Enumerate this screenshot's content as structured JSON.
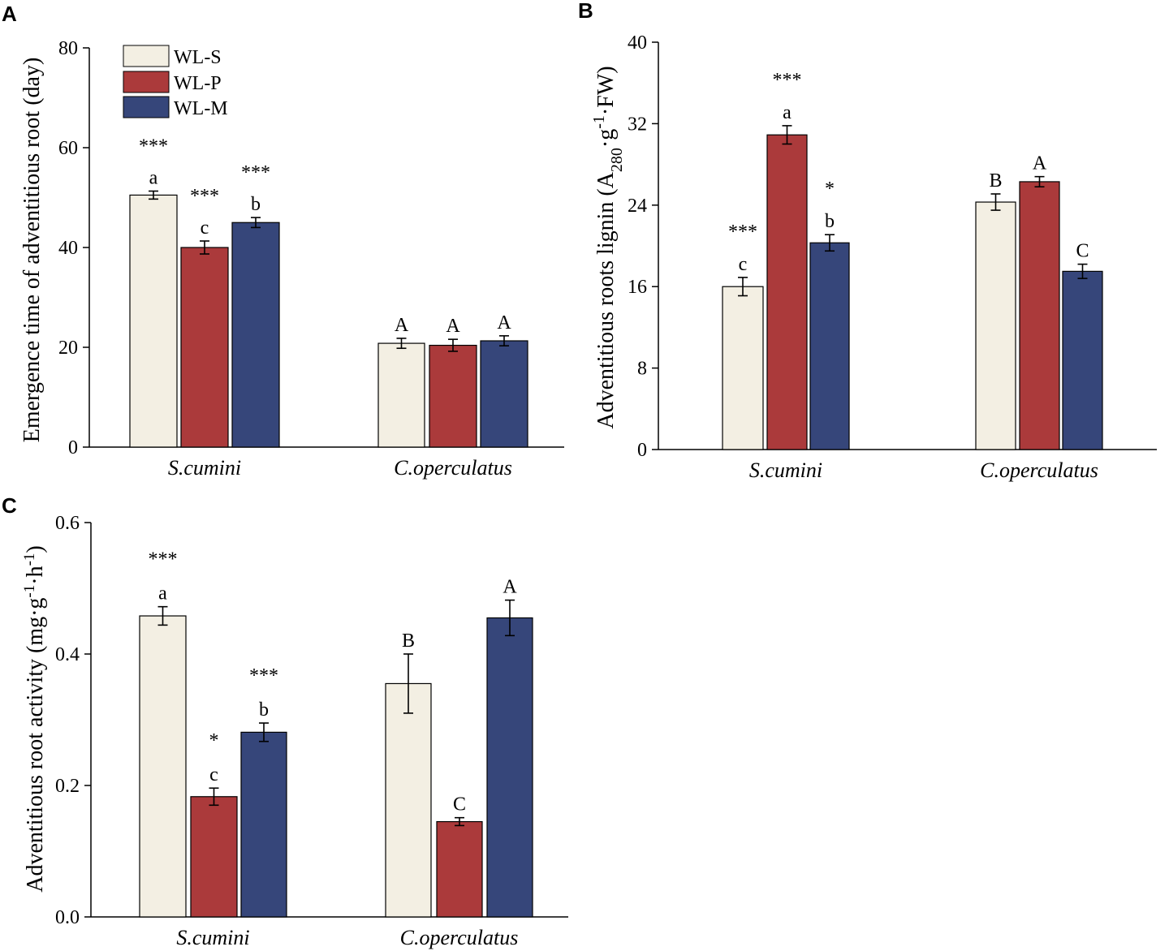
{
  "colors": {
    "WL-S": "#f3efe3",
    "WL-P": "#ab3a3b",
    "WL-M": "#36467a",
    "axis": "#000000"
  },
  "legend": {
    "entries": [
      "WL-S",
      "WL-P",
      "WL-M"
    ]
  },
  "chart_data": [
    {
      "panel": "A",
      "type": "bar",
      "title": "",
      "xlabel": "",
      "ylabel": "Emergence time of adventitious root (day)",
      "categories": [
        "S.cumini",
        "C.operculatus"
      ],
      "ylim": [
        0,
        80
      ],
      "yticks": [
        "0",
        "20",
        "40",
        "60",
        "80"
      ],
      "series": [
        {
          "name": "WL-S",
          "values": [
            50.5,
            20.8
          ],
          "errors": [
            0.8,
            1.0
          ],
          "letters": [
            "a",
            "A"
          ],
          "stars": [
            "***",
            ""
          ]
        },
        {
          "name": "WL-P",
          "values": [
            40.0,
            20.4
          ],
          "errors": [
            1.3,
            1.2
          ],
          "letters": [
            "c",
            "A"
          ],
          "stars": [
            "***",
            ""
          ]
        },
        {
          "name": "WL-M",
          "values": [
            45.0,
            21.3
          ],
          "errors": [
            1.0,
            1.0
          ],
          "letters": [
            "b",
            "A"
          ],
          "stars": [
            "***",
            ""
          ]
        }
      ]
    },
    {
      "panel": "B",
      "type": "bar",
      "title": "",
      "xlabel": "",
      "ylabel_parts": {
        "pre": "Adventitious roots lignin (A",
        "sub": "280",
        "mid1": "·g",
        "sup": "-1",
        "mid2": "·FW)"
      },
      "categories": [
        "S.cumini",
        "C.operculatus"
      ],
      "ylim": [
        0,
        40
      ],
      "yticks": [
        "0",
        "8",
        "16",
        "24",
        "32",
        "40"
      ],
      "series": [
        {
          "name": "WL-S",
          "values": [
            16.0,
            24.3
          ],
          "errors": [
            0.9,
            0.8
          ],
          "letters": [
            "c",
            "B"
          ],
          "stars": [
            "***",
            ""
          ]
        },
        {
          "name": "WL-P",
          "values": [
            30.9,
            26.3
          ],
          "errors": [
            0.9,
            0.5
          ],
          "letters": [
            "a",
            "A"
          ],
          "stars": [
            "***",
            ""
          ]
        },
        {
          "name": "WL-M",
          "values": [
            20.3,
            17.5
          ],
          "errors": [
            0.8,
            0.7
          ],
          "letters": [
            "b",
            "C"
          ],
          "stars": [
            "*",
            ""
          ]
        }
      ]
    },
    {
      "panel": "C",
      "type": "bar",
      "title": "",
      "xlabel": "",
      "ylabel_parts": {
        "pre": "Adventitious root activity (mg·g",
        "sup1": "-1",
        "mid": "·h",
        "sup2": "-1",
        "post": ")"
      },
      "categories": [
        "S.cumini",
        "C.operculatus"
      ],
      "ylim": [
        0,
        0.6
      ],
      "yticks": [
        "0.0",
        "0.2",
        "0.4",
        "0.6"
      ],
      "series": [
        {
          "name": "WL-S",
          "values": [
            0.458,
            0.355
          ],
          "errors": [
            0.014,
            0.045
          ],
          "letters": [
            "a",
            "B"
          ],
          "stars": [
            "***",
            ""
          ]
        },
        {
          "name": "WL-P",
          "values": [
            0.183,
            0.145
          ],
          "errors": [
            0.013,
            0.006
          ],
          "letters": [
            "c",
            "C"
          ],
          "stars": [
            "*",
            ""
          ]
        },
        {
          "name": "WL-M",
          "values": [
            0.281,
            0.455
          ],
          "errors": [
            0.014,
            0.027
          ],
          "letters": [
            "b",
            "A"
          ],
          "stars": [
            "***",
            ""
          ]
        }
      ]
    }
  ]
}
